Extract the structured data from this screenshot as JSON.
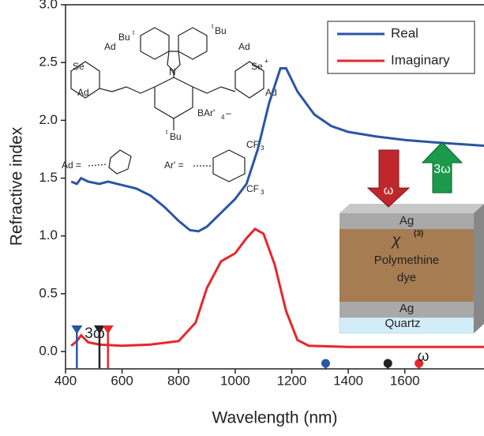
{
  "chart_data": {
    "type": "line",
    "xlabel": "Wavelength (nm)",
    "ylabel": "Refractive index",
    "xlim": [
      400,
      1880
    ],
    "ylim": [
      -0.15,
      3.0
    ],
    "xticks": [
      400,
      600,
      800,
      1000,
      1200,
      1400,
      1600
    ],
    "yticks": [
      {
        "value": 0,
        "label": "0.0"
      },
      0.5,
      {
        "value": 1,
        "label": "1.0"
      },
      1.5,
      {
        "value": 2,
        "label": "2.0"
      },
      2.5,
      {
        "value": 3,
        "label": "3.0"
      }
    ],
    "legend": "top-right",
    "series": [
      {
        "name": "Real",
        "color": "#2a55a5",
        "x": [
          420,
          440,
          455,
          480,
          520,
          550,
          600,
          650,
          700,
          750,
          800,
          840,
          870,
          900,
          950,
          1000,
          1040,
          1080,
          1120,
          1160,
          1180,
          1220,
          1280,
          1340,
          1400,
          1500,
          1600,
          1700,
          1880
        ],
        "values": [
          1.47,
          1.45,
          1.5,
          1.47,
          1.45,
          1.47,
          1.44,
          1.41,
          1.35,
          1.25,
          1.13,
          1.05,
          1.04,
          1.08,
          1.2,
          1.32,
          1.45,
          1.75,
          2.15,
          2.45,
          2.45,
          2.25,
          2.05,
          1.95,
          1.9,
          1.86,
          1.83,
          1.81,
          1.78
        ]
      },
      {
        "name": "Imaginary",
        "color": "#e8262b",
        "x": [
          420,
          440,
          455,
          480,
          520,
          600,
          700,
          800,
          860,
          900,
          950,
          1000,
          1040,
          1070,
          1100,
          1140,
          1180,
          1220,
          1260,
          1400,
          1600,
          1880
        ],
        "values": [
          0.05,
          0.09,
          0.14,
          0.08,
          0.06,
          0.05,
          0.06,
          0.09,
          0.25,
          0.55,
          0.78,
          0.85,
          0.98,
          1.06,
          1.02,
          0.75,
          0.35,
          0.1,
          0.05,
          0.04,
          0.04,
          0.04
        ]
      }
    ],
    "markers": [
      {
        "x": 440,
        "color": "#2a55a5",
        "shape": "triangle"
      },
      {
        "x": 520,
        "color": "#222222",
        "shape": "triangle"
      },
      {
        "x": 550,
        "color": "#e8262b",
        "shape": "triangle"
      },
      {
        "x": 1320,
        "color": "#2a55a5",
        "shape": "circle"
      },
      {
        "x": 1540,
        "color": "#222222",
        "shape": "circle"
      },
      {
        "x": 1650,
        "color": "#e8262b",
        "shape": "circle"
      }
    ],
    "annotations": [
      "3ω",
      "ω"
    ],
    "inset": {
      "arrow_in": "ω",
      "arrow_out": "3ω",
      "top_layer": "Ag",
      "chi": "χ",
      "chi_sup": "(3)",
      "dye": [
        "Polymethine",
        "dye"
      ],
      "bottom_layer": "Ag",
      "substrate": "Quartz"
    },
    "molecule": {
      "labels": [
        "Bu",
        "t",
        "t",
        "Bu",
        "Ad",
        "Ad",
        "Se",
        "Se",
        "+",
        "Ad",
        "Ad",
        "N",
        "BAr'",
        "4",
        "–",
        "t",
        "Bu",
        "Ad =",
        "Ar' =",
        "CF",
        "3",
        "CF",
        "3"
      ]
    }
  }
}
